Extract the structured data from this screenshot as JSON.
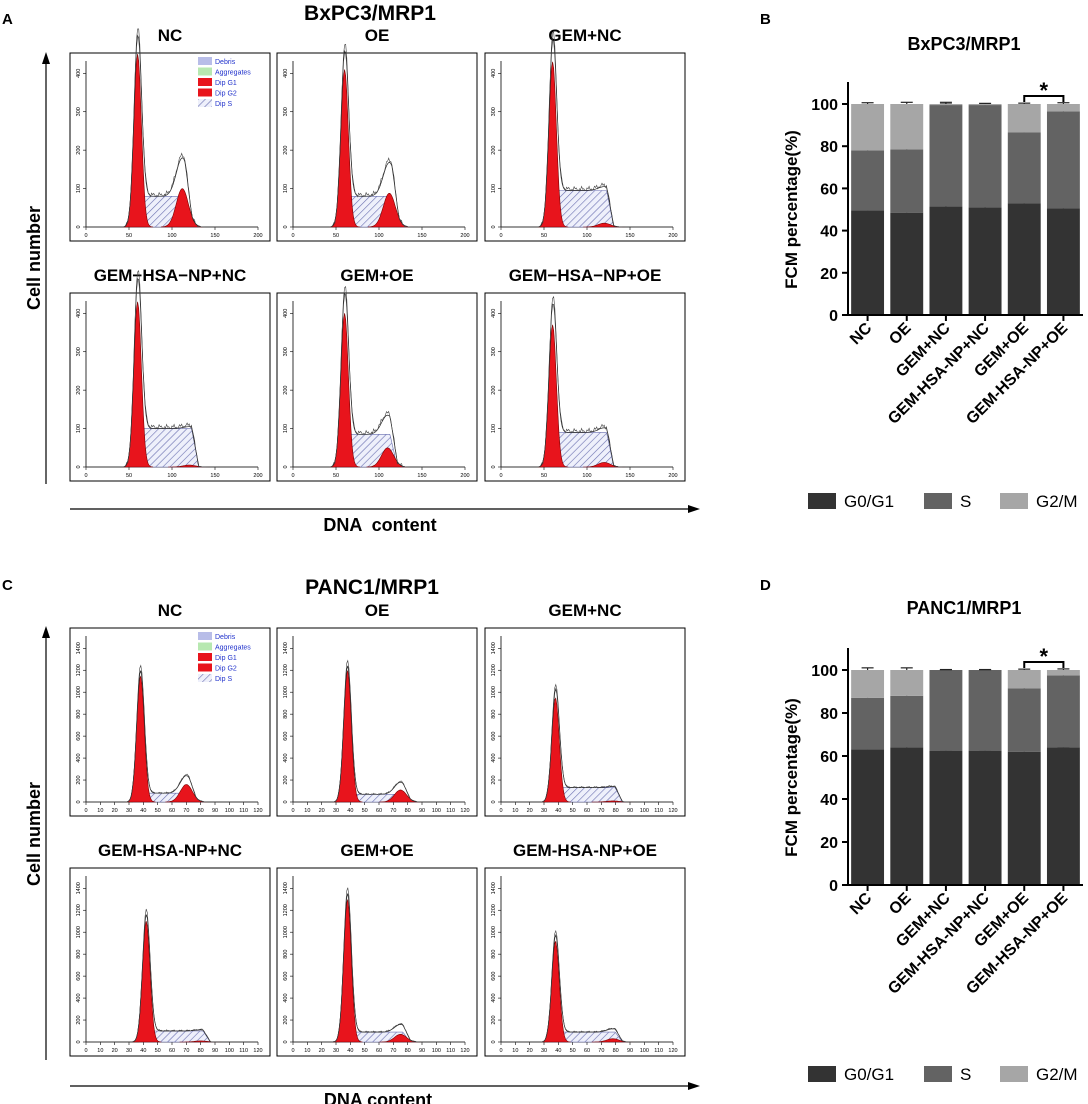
{
  "panel_letters": [
    "A",
    "B",
    "C",
    "D"
  ],
  "flow_panels": [
    {
      "title": "BxPC3/MRP1",
      "y_axis_label": "Cell number",
      "x_axis_label": "DNA  content",
      "legend": [
        "Debris",
        "Aggregates",
        "Dip G1",
        "Dip G2",
        "Dip S"
      ],
      "x_ticks": [
        "0",
        "50",
        "100",
        "150",
        "200"
      ],
      "y_ticks": [
        "0",
        "100",
        "200",
        "300",
        "400"
      ],
      "histograms": [
        {
          "label": "NC",
          "g1_pos": 60,
          "g1_height": 450,
          "g2_pos": 112,
          "g2_height": 100,
          "s_level": 80
        },
        {
          "label": "OE",
          "g1_pos": 60,
          "g1_height": 410,
          "g2_pos": 112,
          "g2_height": 88,
          "s_level": 80
        },
        {
          "label": "GEM+NC",
          "g1_pos": 60,
          "g1_height": 430,
          "g2_pos": 120,
          "g2_height": 10,
          "s_level": 95
        },
        {
          "label": "GEM−HSA−NP+NC",
          "g1_pos": 60,
          "g1_height": 430,
          "g2_pos": 120,
          "g2_height": 5,
          "s_level": 100
        },
        {
          "label": "GEM+OE",
          "g1_pos": 60,
          "g1_height": 400,
          "g2_pos": 110,
          "g2_height": 50,
          "s_level": 85
        },
        {
          "label": "GEM−HSA−NP+OE",
          "g1_pos": 60,
          "g1_height": 370,
          "g2_pos": 120,
          "g2_height": 12,
          "s_level": 90
        }
      ]
    },
    {
      "title": "PANC1/MRP1",
      "y_axis_label": "Cell number",
      "x_axis_label": "DNA content",
      "legend": [
        "Debris",
        "Aggregates",
        "Dip G1",
        "Dip G2",
        "Dip S"
      ],
      "x_ticks": [
        "0",
        "10",
        "20",
        "30",
        "40",
        "50",
        "60",
        "70",
        "80",
        "90",
        "100",
        "110",
        "120"
      ],
      "y_ticks": [
        "0",
        "200",
        "400",
        "600",
        "800",
        "1000",
        "1200",
        "1400"
      ],
      "histograms": [
        {
          "label": "NC",
          "g1_pos": 38,
          "g1_height": 1150,
          "g2_pos": 70,
          "g2_height": 160,
          "s_level": 80
        },
        {
          "label": "OE",
          "g1_pos": 38,
          "g1_height": 1200,
          "g2_pos": 75,
          "g2_height": 110,
          "s_level": 70
        },
        {
          "label": "GEM+NC",
          "g1_pos": 38,
          "g1_height": 950,
          "g2_pos": 78,
          "g2_height": 10,
          "s_level": 130
        },
        {
          "label": "GEM-HSA-NP+NC",
          "g1_pos": 42,
          "g1_height": 1100,
          "g2_pos": 80,
          "g2_height": 10,
          "s_level": 100
        },
        {
          "label": "GEM+OE",
          "g1_pos": 38,
          "g1_height": 1300,
          "g2_pos": 75,
          "g2_height": 70,
          "s_level": 90
        },
        {
          "label": "GEM-HSA-NP+OE",
          "g1_pos": 38,
          "g1_height": 920,
          "g2_pos": 78,
          "g2_height": 30,
          "s_level": 90
        }
      ]
    }
  ],
  "chart_data": [
    {
      "type": "bar",
      "stacked": true,
      "title": "BxPC3/MRP1",
      "ylabel": "FCM percentage(%)",
      "xlabel": "",
      "ylim": [
        0,
        100
      ],
      "yticks": [
        0,
        20,
        40,
        60,
        80,
        100
      ],
      "categories": [
        "NC",
        "OE",
        "GEM+NC",
        "GEM-HSA-NP+NC",
        "GEM+OE",
        "GEM-HSA-NP+OE"
      ],
      "series": [
        {
          "name": "G0/G1",
          "color": "#333333",
          "values": [
            49.5,
            48.5,
            51.5,
            51,
            53,
            50.5
          ],
          "errors": [
            0.6,
            0.6,
            0.6,
            0.6,
            0.6,
            0.6
          ]
        },
        {
          "name": "S",
          "color": "#636363",
          "values": [
            28.5,
            30,
            48,
            48.5,
            33.5,
            46
          ],
          "errors": [
            0.8,
            1.0,
            0.5,
            0.3,
            0.5,
            1.0
          ]
        },
        {
          "name": "G2/M",
          "color": "#a6a6a6",
          "values": [
            22,
            21.5,
            0.5,
            0.5,
            13.5,
            3.5
          ],
          "errors": [
            0.6,
            0.8,
            0.8,
            0.3,
            0.4,
            0.6
          ]
        }
      ],
      "significance": {
        "from": "GEM+OE",
        "to": "GEM-HSA-NP+OE",
        "label": "*"
      },
      "legend": [
        "G0/G1",
        "S",
        "G2/M"
      ]
    },
    {
      "type": "bar",
      "stacked": true,
      "title": "PANC1/MRP1",
      "ylabel": "FCM percentage(%)",
      "xlabel": "",
      "ylim": [
        0,
        100
      ],
      "yticks": [
        0,
        20,
        40,
        60,
        80,
        100
      ],
      "categories": [
        "NC",
        "OE",
        "GEM+NC",
        "GEM-HSA-NP+NC",
        "GEM+OE",
        "GEM-HSA-NP+OE"
      ],
      "series": [
        {
          "name": "G0/G1",
          "color": "#333333",
          "values": [
            63,
            64,
            62.5,
            62.5,
            62,
            64
          ],
          "errors": [
            0.5,
            0.5,
            0.3,
            0.3,
            0.5,
            0.3
          ]
        },
        {
          "name": "S",
          "color": "#636363",
          "values": [
            24,
            24,
            37.5,
            37.5,
            29.5,
            33.5
          ],
          "errors": [
            0.5,
            1.0,
            0.2,
            0.2,
            0.5,
            1.0
          ]
        },
        {
          "name": "G2/M",
          "color": "#a6a6a6",
          "values": [
            13,
            12,
            0,
            0,
            8.5,
            2.5
          ],
          "errors": [
            1.0,
            1.0,
            0.2,
            0.2,
            0.4,
            0.5
          ]
        }
      ],
      "significance": {
        "from": "GEM+OE",
        "to": "GEM-HSA-NP+OE",
        "label": "*"
      },
      "legend": [
        "G0/G1",
        "S",
        "G2/M"
      ]
    }
  ]
}
